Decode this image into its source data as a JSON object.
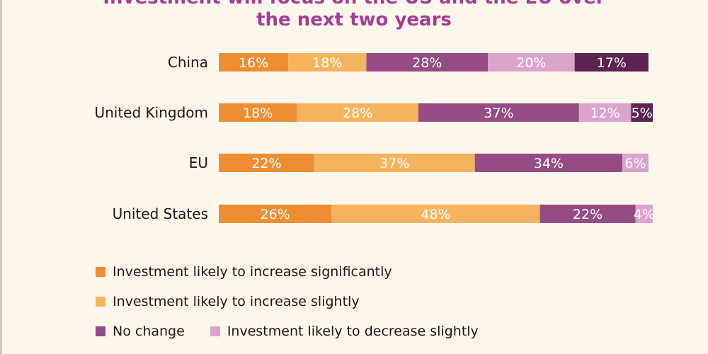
{
  "title": {
    "line1": "Investment will focus on the US and the EU over",
    "line2": "the next two years"
  },
  "colors": {
    "increase_significantly": "#ef8d32",
    "increase_slightly": "#f5b35e",
    "no_change": "#954c84",
    "decrease_slightly": "#dba4cc",
    "decrease_significantly": "#5c2350"
  },
  "chart_data": {
    "type": "bar",
    "orientation": "horizontal",
    "stacked": true,
    "categories": [
      "China",
      "United Kingdom",
      "EU",
      "United States"
    ],
    "series": [
      {
        "name": "Investment likely to increase significantly",
        "values": [
          16,
          18,
          22,
          26
        ]
      },
      {
        "name": "Investment likely to increase slightly",
        "values": [
          18,
          28,
          37,
          48
        ]
      },
      {
        "name": "No change",
        "values": [
          28,
          37,
          34,
          22
        ]
      },
      {
        "name": "Investment likely to decrease slightly",
        "values": [
          20,
          12,
          6,
          4
        ]
      },
      {
        "name": "",
        "values": [
          17,
          5,
          0,
          0
        ]
      }
    ],
    "data_labels": [
      [
        "16%",
        "18%",
        "28%",
        "20%",
        "17%"
      ],
      [
        "18%",
        "28%",
        "37%",
        "12%",
        "5%"
      ],
      [
        "22%",
        "37%",
        "34%",
        "6%",
        ""
      ],
      [
        "26%",
        "48%",
        "22%",
        "4%",
        ""
      ]
    ],
    "xlim": [
      0,
      100
    ],
    "grid": false
  },
  "legend": [
    {
      "label": "Investment likely to increase significantly",
      "color": "#ef8d32"
    },
    {
      "label": "Investment likely to increase slightly",
      "color": "#f5b35e"
    },
    {
      "label": "No change",
      "color": "#954c84"
    },
    {
      "label": "Investment likely to decrease slightly",
      "color": "#dba4cc"
    }
  ]
}
